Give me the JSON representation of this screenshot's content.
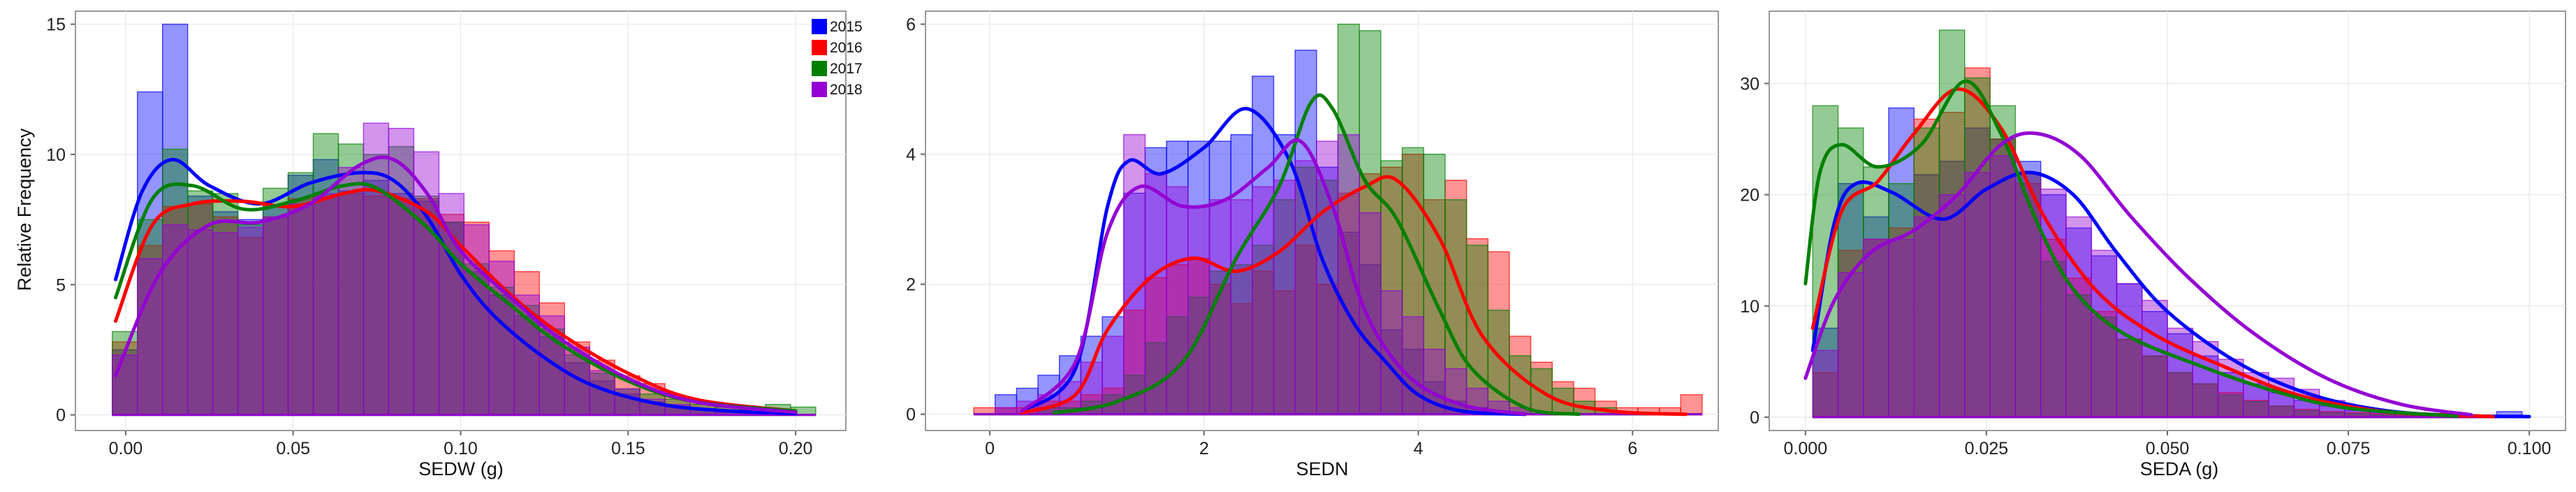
{
  "colors": {
    "2015": "#0000ff",
    "2016": "#ff0000",
    "2017": "#008000",
    "2018": "#9400d3"
  },
  "chart_data": [
    {
      "type": "histogram+kde",
      "xlabel": "SEDW (g)",
      "ylabel": "Relative Frequency",
      "xlim": [
        -0.015,
        0.215
      ],
      "ylim": [
        -0.6,
        15.5
      ],
      "xticks": [
        0.0,
        0.05,
        0.1,
        0.15,
        0.2
      ],
      "xtick_labels": [
        "0.00",
        "0.05",
        "0.10",
        "0.15",
        "0.20"
      ],
      "yticks": [
        0,
        5,
        10,
        15
      ],
      "ytick_labels": [
        "0",
        "5",
        "10",
        "15"
      ],
      "legend": {
        "position": "top-right",
        "entries": [
          "2015",
          "2016",
          "2017",
          "2018"
        ]
      },
      "bin_start": -0.004,
      "bin_width": 0.0075,
      "series": [
        {
          "name": "2015",
          "hist": [
            2.5,
            12.4,
            15.0,
            8.4,
            7.8,
            7.5,
            8.0,
            9.2,
            9.8,
            8.6,
            9.0,
            8.5,
            8.2,
            7.4,
            5.5,
            4.6,
            3.8,
            3.0,
            2.0,
            1.3,
            0.8,
            0.5,
            0.3,
            0.2,
            0.1,
            0.1,
            0.1,
            0.0
          ],
          "kde_x": [
            -0.003,
            0.005,
            0.014,
            0.025,
            0.04,
            0.055,
            0.07,
            0.08,
            0.09,
            0.1,
            0.11,
            0.125,
            0.14,
            0.16,
            0.18,
            0.2
          ],
          "kde_y": [
            5.2,
            8.6,
            9.8,
            8.8,
            8.1,
            8.9,
            9.3,
            9.0,
            7.6,
            5.4,
            3.8,
            2.2,
            1.1,
            0.4,
            0.15,
            0.05
          ]
        },
        {
          "name": "2016",
          "hist": [
            2.8,
            6.5,
            8.0,
            8.1,
            7.6,
            6.8,
            7.6,
            8.3,
            8.4,
            8.5,
            8.4,
            8.3,
            8.3,
            7.7,
            7.4,
            6.3,
            5.5,
            4.3,
            2.8,
            2.1,
            1.5,
            1.2,
            0.7,
            0.5,
            0.3,
            0.2,
            0.1,
            0.0
          ],
          "kde_x": [
            -0.003,
            0.008,
            0.02,
            0.035,
            0.05,
            0.065,
            0.075,
            0.09,
            0.1,
            0.115,
            0.13,
            0.15,
            0.17,
            0.2
          ],
          "kde_y": [
            3.6,
            7.3,
            8.1,
            8.2,
            8.0,
            8.5,
            8.6,
            7.8,
            6.5,
            4.6,
            3.1,
            1.6,
            0.6,
            0.15
          ]
        },
        {
          "name": "2017",
          "hist": [
            3.2,
            7.5,
            10.2,
            8.6,
            8.5,
            7.3,
            8.7,
            9.3,
            10.8,
            10.4,
            10.0,
            10.3,
            8.4,
            7.4,
            5.8,
            4.9,
            4.2,
            3.3,
            2.3,
            1.6,
            1.0,
            0.8,
            0.6,
            0.4,
            0.3,
            0.3,
            0.4,
            0.3
          ],
          "kde_x": [
            -0.003,
            0.008,
            0.02,
            0.035,
            0.05,
            0.065,
            0.075,
            0.09,
            0.1,
            0.115,
            0.13,
            0.15,
            0.17,
            0.2
          ],
          "kde_y": [
            4.5,
            8.3,
            8.8,
            7.9,
            8.2,
            8.8,
            8.7,
            7.2,
            5.8,
            4.2,
            2.7,
            1.3,
            0.5,
            0.15
          ]
        },
        {
          "name": "2018",
          "hist": [
            2.3,
            6.0,
            7.3,
            7.1,
            7.0,
            7.2,
            7.6,
            8.1,
            8.5,
            9.5,
            11.2,
            11.0,
            10.1,
            8.5,
            7.3,
            5.9,
            4.6,
            3.8,
            2.6,
            1.7,
            1.0,
            0.6,
            0.4,
            0.2,
            0.1,
            0.1,
            0.1,
            0.0
          ],
          "kde_x": [
            -0.003,
            0.01,
            0.025,
            0.04,
            0.055,
            0.07,
            0.08,
            0.09,
            0.1,
            0.115,
            0.13,
            0.15,
            0.17,
            0.2
          ],
          "kde_y": [
            1.5,
            5.4,
            7.3,
            7.4,
            8.1,
            9.6,
            9.8,
            8.5,
            6.3,
            4.5,
            2.9,
            1.4,
            0.5,
            0.1
          ]
        }
      ]
    },
    {
      "type": "histogram+kde",
      "xlabel": "SEDN",
      "ylabel": "",
      "xlim": [
        -0.6,
        6.8
      ],
      "ylim": [
        -0.25,
        6.2
      ],
      "xticks": [
        0,
        2,
        4,
        6
      ],
      "xtick_labels": [
        "0",
        "2",
        "4",
        "6"
      ],
      "yticks": [
        0,
        2,
        4,
        6
      ],
      "ytick_labels": [
        "0",
        "2",
        "4",
        "6"
      ],
      "bin_start": -0.15,
      "bin_width": 0.2,
      "series": [
        {
          "name": "2015",
          "hist": [
            0.0,
            0.3,
            0.4,
            0.6,
            0.9,
            1.2,
            1.5,
            3.4,
            4.1,
            4.2,
            4.2,
            4.2,
            4.3,
            5.2,
            4.3,
            5.6,
            3.8,
            2.8,
            2.3,
            1.3,
            1.0,
            0.5,
            0.2,
            0.1,
            0.0,
            0.0,
            0.0,
            0.0,
            0.0,
            0.0,
            0.0,
            0.0,
            0.0,
            0.0
          ],
          "kde_x": [
            0.3,
            0.8,
            1.1,
            1.3,
            1.6,
            2.0,
            2.4,
            2.8,
            3.1,
            3.4,
            3.7,
            4.0,
            4.4,
            5.0
          ],
          "kde_y": [
            0.05,
            0.7,
            3.2,
            3.9,
            3.7,
            4.1,
            4.7,
            3.9,
            2.4,
            1.4,
            0.8,
            0.3,
            0.05,
            0.0
          ]
        },
        {
          "name": "2016",
          "hist": [
            0.1,
            0.1,
            0.1,
            0.2,
            0.2,
            0.3,
            0.4,
            1.6,
            2.1,
            2.3,
            2.4,
            2.0,
            1.7,
            2.2,
            1.9,
            2.6,
            2.0,
            3.4,
            3.7,
            3.8,
            4.0,
            3.3,
            3.6,
            2.7,
            2.5,
            1.2,
            0.8,
            0.5,
            0.4,
            0.2,
            0.1,
            0.1,
            0.1,
            0.3
          ],
          "kde_x": [
            0.3,
            0.8,
            1.1,
            1.5,
            1.9,
            2.3,
            2.7,
            3.1,
            3.5,
            3.8,
            4.2,
            4.6,
            5.2,
            5.8,
            6.5
          ],
          "kde_y": [
            0.02,
            0.3,
            1.3,
            2.1,
            2.4,
            2.2,
            2.5,
            3.1,
            3.5,
            3.6,
            2.7,
            1.2,
            0.3,
            0.05,
            0.0
          ]
        },
        {
          "name": "2017",
          "hist": [
            0.0,
            0.0,
            0.0,
            0.1,
            0.1,
            0.2,
            0.3,
            0.6,
            1.1,
            1.5,
            1.8,
            2.2,
            2.3,
            2.6,
            3.3,
            3.8,
            3.6,
            6.0,
            5.9,
            3.9,
            4.1,
            4.0,
            3.3,
            2.6,
            1.6,
            0.9,
            0.7,
            0.4,
            0.2,
            0.1,
            0.0,
            0.0,
            0.0,
            0.0
          ],
          "kde_x": [
            0.6,
            1.2,
            1.8,
            2.3,
            2.7,
            3.0,
            3.2,
            3.5,
            3.8,
            4.2,
            4.5,
            5.0,
            5.5
          ],
          "kde_y": [
            0.02,
            0.2,
            0.8,
            2.4,
            3.5,
            4.8,
            4.7,
            3.6,
            3.0,
            1.6,
            0.7,
            0.1,
            0.0
          ]
        },
        {
          "name": "2018",
          "hist": [
            0.0,
            0.1,
            0.2,
            0.3,
            0.5,
            0.8,
            1.2,
            4.3,
            3.7,
            3.5,
            3.2,
            3.3,
            3.3,
            3.5,
            3.6,
            3.9,
            4.2,
            4.3,
            3.1,
            1.9,
            1.5,
            1.0,
            0.7,
            0.4,
            0.2,
            0.1,
            0.0,
            0.0,
            0.0,
            0.0,
            0.0,
            0.0,
            0.0,
            0.0
          ],
          "kde_x": [
            0.3,
            0.8,
            1.1,
            1.4,
            1.8,
            2.2,
            2.6,
            2.9,
            3.2,
            3.5,
            3.9,
            4.4,
            5.0
          ],
          "kde_y": [
            0.05,
            0.8,
            2.8,
            3.5,
            3.2,
            3.3,
            3.8,
            4.2,
            3.2,
            1.6,
            0.6,
            0.15,
            0.0
          ]
        }
      ]
    },
    {
      "type": "histogram+kde",
      "xlabel": "SEDA (g)",
      "ylabel": "",
      "xlim": [
        -0.005,
        0.105
      ],
      "ylim": [
        -1.2,
        36.5
      ],
      "xticks": [
        0.0,
        0.025,
        0.05,
        0.075,
        0.1
      ],
      "xtick_labels": [
        "0.000",
        "0.025",
        "0.050",
        "0.075",
        "0.100"
      ],
      "yticks": [
        0,
        10,
        20,
        30
      ],
      "ytick_labels": [
        "0",
        "10",
        "20",
        "30"
      ],
      "bin_start": 0.001,
      "bin_width": 0.0035,
      "series": [
        {
          "name": "2015",
          "hist": [
            8.0,
            21.0,
            18.0,
            27.8,
            21.8,
            23.0,
            26.0,
            25.0,
            23.0,
            20.0,
            17.0,
            14.5,
            12.0,
            9.5,
            7.5,
            5.5,
            4.0,
            3.0,
            2.2,
            1.5,
            1.0,
            0.6,
            0.4,
            0.3,
            0.2,
            0.2,
            0.1,
            0.5
          ],
          "kde_x": [
            0.001,
            0.004,
            0.007,
            0.012,
            0.019,
            0.025,
            0.031,
            0.037,
            0.043,
            0.05,
            0.06,
            0.07,
            0.08,
            0.09,
            0.1
          ],
          "kde_y": [
            6.0,
            17.5,
            21.0,
            20.2,
            17.8,
            20.5,
            22.0,
            20.0,
            14.8,
            9.5,
            4.8,
            2.0,
            0.6,
            0.15,
            0.05
          ]
        },
        {
          "name": "2016",
          "hist": [
            4.0,
            15.0,
            16.0,
            17.0,
            26.8,
            27.4,
            31.4,
            25.0,
            21.0,
            16.0,
            12.5,
            9.5,
            7.0,
            5.5,
            4.0,
            3.0,
            2.2,
            1.5,
            1.0,
            0.7,
            0.5,
            0.4,
            0.3,
            0.2,
            0.1,
            0.1,
            0.1,
            0.0
          ],
          "kde_x": [
            0.001,
            0.005,
            0.01,
            0.015,
            0.021,
            0.027,
            0.033,
            0.04,
            0.048,
            0.058,
            0.068,
            0.08,
            0.095
          ],
          "kde_y": [
            8.0,
            18.5,
            21.2,
            25.5,
            29.5,
            26.0,
            18.0,
            11.5,
            7.5,
            4.5,
            2.0,
            0.5,
            0.05
          ]
        },
        {
          "name": "2017",
          "hist": [
            28.0,
            26.0,
            22.5,
            21.0,
            26.0,
            34.8,
            30.5,
            28.0,
            22.0,
            14.0,
            11.0,
            9.0,
            7.0,
            5.5,
            4.0,
            3.0,
            2.0,
            1.4,
            1.0,
            0.6,
            0.4,
            0.3,
            0.2,
            0.1,
            0.1,
            0.1,
            0.0,
            0.0
          ],
          "kde_x": [
            0.0,
            0.002,
            0.005,
            0.01,
            0.016,
            0.022,
            0.027,
            0.032,
            0.037,
            0.044,
            0.055,
            0.065,
            0.075,
            0.09
          ],
          "kde_y": [
            12.0,
            22.0,
            24.5,
            22.5,
            24.5,
            30.2,
            25.5,
            17.5,
            11.5,
            7.5,
            4.5,
            2.3,
            0.8,
            0.1
          ]
        },
        {
          "name": "2018",
          "hist": [
            6.0,
            13.0,
            16.0,
            16.0,
            18.0,
            20.0,
            22.0,
            23.5,
            22.0,
            20.5,
            18.0,
            15.0,
            12.0,
            10.5,
            8.0,
            6.8,
            5.2,
            4.0,
            3.5,
            2.5,
            1.5,
            0.9,
            0.6,
            0.4,
            0.3,
            0.2,
            0.1,
            0.0
          ],
          "kde_x": [
            0.0,
            0.004,
            0.009,
            0.015,
            0.021,
            0.027,
            0.032,
            0.038,
            0.045,
            0.053,
            0.062,
            0.072,
            0.082,
            0.092
          ],
          "kde_y": [
            3.5,
            10.5,
            14.8,
            16.8,
            20.0,
            24.5,
            25.5,
            23.5,
            18.0,
            12.5,
            7.5,
            3.5,
            1.2,
            0.2
          ]
        }
      ]
    }
  ]
}
